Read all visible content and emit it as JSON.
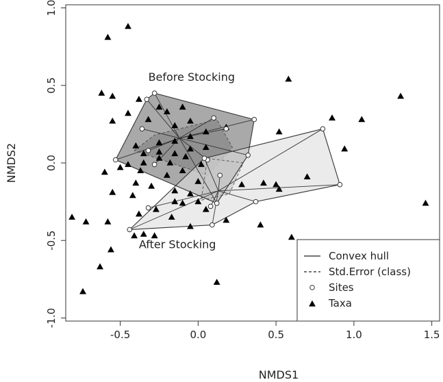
{
  "chart_data": {
    "type": "scatter",
    "title": "",
    "xlabel": "NMDS1",
    "ylabel": "NMDS2",
    "xlim": [
      -0.85,
      1.55
    ],
    "ylim": [
      -1.02,
      1.02
    ],
    "x_ticks": [
      -0.5,
      0.0,
      0.5,
      1.0,
      1.5
    ],
    "x_tick_labels": [
      "-0.5",
      "0.0",
      "0.5",
      "1.0",
      "1.5"
    ],
    "y_ticks": [
      -1.0,
      -0.5,
      0.0,
      0.5,
      1.0
    ],
    "y_tick_labels": [
      "-1.0",
      "-0.5",
      "0.0",
      "0.5",
      "1.0"
    ],
    "grid": false,
    "legend_position": "bottom-right",
    "legend": [
      "Convex hull",
      "Std.Error (class)",
      "Sites",
      "Taxa"
    ],
    "group_labels": [
      "Before Stocking",
      "After Stocking"
    ],
    "groups": [
      {
        "label": "Before Stocking",
        "fill": "#9a9a9a",
        "centroid": [
          -0.12,
          0.16
        ],
        "sites": [
          [
            -0.53,
            0.02
          ],
          [
            -0.36,
            0.22
          ],
          [
            -0.33,
            0.41
          ],
          [
            -0.28,
            0.45
          ],
          [
            0.1,
            0.29
          ],
          [
            0.18,
            0.22
          ],
          [
            0.36,
            0.28
          ],
          [
            0.32,
            0.05
          ],
          [
            0.06,
            0.02
          ],
          [
            -0.28,
            -0.01
          ],
          [
            -0.32,
            0.08
          ],
          [
            0.12,
            -0.26
          ]
        ],
        "hull": [
          [
            -0.53,
            0.02
          ],
          [
            -0.33,
            0.41
          ],
          [
            -0.28,
            0.45
          ],
          [
            0.36,
            0.28
          ],
          [
            0.32,
            0.05
          ],
          [
            0.12,
            -0.26
          ]
        ],
        "std_error_region": [
          [
            -0.41,
            0.08
          ],
          [
            -0.28,
            0.18
          ],
          [
            0.12,
            0.28
          ],
          [
            0.22,
            0.1
          ],
          [
            0.06,
            -0.08
          ]
        ]
      },
      {
        "label": "After Stocking",
        "fill": "#dedede",
        "centroid": [
          0.13,
          -0.18
        ],
        "sites": [
          [
            -0.44,
            -0.43
          ],
          [
            -0.32,
            -0.29
          ],
          [
            0.09,
            -0.4
          ],
          [
            0.37,
            -0.25
          ],
          [
            0.91,
            -0.14
          ],
          [
            0.8,
            0.22
          ],
          [
            0.04,
            0.03
          ],
          [
            0.14,
            -0.08
          ],
          [
            0.08,
            -0.28
          ]
        ],
        "hull": [
          [
            -0.44,
            -0.43
          ],
          [
            0.09,
            -0.4
          ],
          [
            0.37,
            -0.25
          ],
          [
            0.91,
            -0.14
          ],
          [
            0.8,
            0.22
          ],
          [
            0.04,
            0.03
          ]
        ],
        "std_error_region": [
          [
            0.06,
            0.03
          ],
          [
            0.29,
            0.0
          ],
          [
            0.2,
            -0.2
          ],
          [
            0.02,
            -0.24
          ]
        ]
      }
    ],
    "taxa": [
      [
        -0.45,
        0.88
      ],
      [
        -0.58,
        0.81
      ],
      [
        -0.62,
        0.45
      ],
      [
        -0.55,
        0.43
      ],
      [
        -0.38,
        0.41
      ],
      [
        -0.55,
        0.27
      ],
      [
        -0.45,
        0.32
      ],
      [
        -0.32,
        0.28
      ],
      [
        -0.25,
        0.36
      ],
      [
        -0.2,
        0.33
      ],
      [
        -0.1,
        0.36
      ],
      [
        -0.15,
        0.24
      ],
      [
        -0.05,
        0.27
      ],
      [
        0.05,
        0.2
      ],
      [
        0.18,
        0.23
      ],
      [
        -0.4,
        0.11
      ],
      [
        -0.25,
        0.13
      ],
      [
        -0.15,
        0.14
      ],
      [
        -0.05,
        0.17
      ],
      [
        -0.35,
        0.06
      ],
      [
        -0.25,
        0.07
      ],
      [
        -0.15,
        0.06
      ],
      [
        -0.05,
        0.09
      ],
      [
        0.05,
        0.1
      ],
      [
        -0.45,
        -0.01
      ],
      [
        -0.35,
        0.0
      ],
      [
        -0.25,
        0.03
      ],
      [
        -0.18,
        0.0
      ],
      [
        -0.08,
        0.04
      ],
      [
        0.02,
        -0.01
      ],
      [
        -0.6,
        -0.06
      ],
      [
        -0.5,
        -0.03
      ],
      [
        -0.37,
        -0.05
      ],
      [
        -0.2,
        -0.08
      ],
      [
        -0.1,
        -0.05
      ],
      [
        0.0,
        -0.12
      ],
      [
        -0.05,
        -0.2
      ],
      [
        -0.15,
        -0.18
      ],
      [
        -0.3,
        -0.15
      ],
      [
        -0.4,
        -0.13
      ],
      [
        -0.55,
        -0.19
      ],
      [
        -0.42,
        -0.21
      ],
      [
        -0.27,
        -0.3
      ],
      [
        -0.15,
        -0.25
      ],
      [
        0.0,
        -0.25
      ],
      [
        0.05,
        -0.3
      ],
      [
        -0.38,
        -0.33
      ],
      [
        -0.17,
        -0.35
      ],
      [
        -0.1,
        -0.26
      ],
      [
        0.18,
        -0.37
      ],
      [
        -0.05,
        -0.41
      ],
      [
        -0.28,
        -0.47
      ],
      [
        -0.35,
        -0.46
      ],
      [
        -0.41,
        -0.47
      ],
      [
        0.28,
        -0.14
      ],
      [
        0.42,
        -0.13
      ],
      [
        0.5,
        -0.14
      ],
      [
        0.52,
        -0.17
      ],
      [
        0.7,
        -0.09
      ],
      [
        0.4,
        -0.4
      ],
      [
        -0.58,
        -0.38
      ],
      [
        -0.56,
        -0.56
      ],
      [
        -0.72,
        -0.38
      ],
      [
        -0.81,
        -0.35
      ],
      [
        -0.63,
        -0.67
      ],
      [
        -0.74,
        -0.83
      ],
      [
        0.58,
        0.54
      ],
      [
        0.52,
        0.2
      ],
      [
        0.86,
        0.29
      ],
      [
        1.05,
        0.28
      ],
      [
        0.94,
        0.09
      ],
      [
        1.3,
        0.43
      ],
      [
        1.46,
        -0.26
      ],
      [
        0.6,
        -0.48
      ],
      [
        0.12,
        -0.77
      ]
    ]
  }
}
